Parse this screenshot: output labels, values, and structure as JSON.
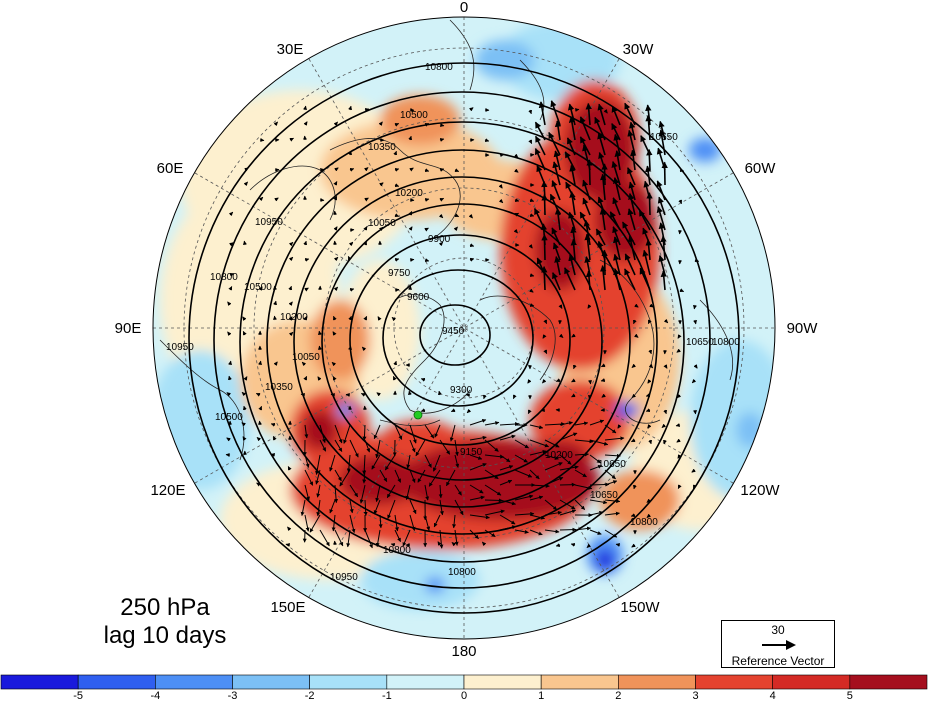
{
  "map": {
    "projection": "north polar stereographic",
    "longitude_labels": {
      "top": "0",
      "top_right": "30W",
      "upper_right": "60W",
      "right": "90W",
      "lower_right": "120W",
      "bottom_right": "150W",
      "bottom": "180",
      "bottom_left": "150E",
      "lower_left": "120E",
      "left": "90E",
      "upper_left": "60E",
      "top_left": "30E"
    },
    "contour_labels": [
      "10800",
      "10500",
      "10350",
      "10200",
      "10050",
      "9900",
      "9750",
      "9600",
      "9450",
      "9300",
      "10650",
      "10950",
      "10800",
      "10800",
      "10800",
      "10950",
      "10650",
      "10800",
      "10800",
      "10950",
      "10650",
      "10200",
      "10350",
      "10500",
      "9150",
      "10650",
      "10050",
      "10200",
      "10500"
    ],
    "colors": {
      "ocean_base": "#d2f2f8",
      "land_outline": "#222222",
      "contour": "#000000",
      "vector": "#000000",
      "marker": "#22cc22"
    }
  },
  "title": {
    "line1": "250 hPa",
    "line2": "lag 10 days"
  },
  "reference_vector": {
    "value": "30",
    "caption": "Reference Vector"
  },
  "colorbar": {
    "tick_labels": [
      "-5",
      "-4",
      "-3",
      "-2",
      "-1",
      "0",
      "1",
      "2",
      "3",
      "4",
      "5"
    ],
    "colors": [
      "#1a1adc",
      "#2f5ff0",
      "#4d8ff5",
      "#7cc0f5",
      "#a8e1f8",
      "#d2f2f8",
      "#fdf0cf",
      "#f9c68f",
      "#f0935a",
      "#e4432f",
      "#d42a25",
      "#a50f1e"
    ]
  }
}
